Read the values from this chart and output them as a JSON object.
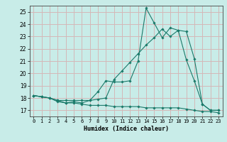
{
  "xlabel": "Humidex (Indice chaleur)",
  "ylabel": "",
  "bg_color": "#c8ece8",
  "grid_color": "#d4b8b8",
  "line_color": "#1a7a6a",
  "xlim": [
    -0.5,
    23.5
  ],
  "ylim": [
    16.5,
    25.5
  ],
  "yticks": [
    17,
    18,
    19,
    20,
    21,
    22,
    23,
    24,
    25
  ],
  "xticks": [
    0,
    1,
    2,
    3,
    4,
    5,
    6,
    7,
    8,
    9,
    10,
    11,
    12,
    13,
    14,
    15,
    16,
    17,
    18,
    19,
    20,
    21,
    22,
    23
  ],
  "line1_x": [
    0,
    1,
    2,
    3,
    4,
    5,
    6,
    7,
    8,
    9,
    10,
    11,
    12,
    13,
    14,
    15,
    16,
    17,
    18,
    19,
    20,
    21,
    22,
    23
  ],
  "line1_y": [
    18.2,
    18.1,
    18.0,
    17.7,
    17.6,
    17.6,
    17.5,
    17.4,
    17.4,
    17.4,
    17.3,
    17.3,
    17.3,
    17.3,
    17.2,
    17.2,
    17.2,
    17.2,
    17.2,
    17.1,
    17.0,
    16.9,
    16.9,
    16.8
  ],
  "line2_x": [
    0,
    1,
    2,
    3,
    4,
    5,
    6,
    7,
    8,
    9,
    10,
    11,
    12,
    13,
    14,
    15,
    16,
    17,
    18,
    19,
    20,
    21,
    22,
    23
  ],
  "line2_y": [
    18.2,
    18.1,
    18.0,
    17.8,
    17.6,
    17.7,
    17.6,
    17.8,
    18.5,
    19.4,
    19.3,
    19.3,
    19.4,
    21.0,
    25.3,
    24.1,
    22.9,
    23.7,
    23.5,
    21.1,
    19.4,
    17.5,
    17.0,
    17.0
  ],
  "line3_x": [
    0,
    1,
    2,
    3,
    4,
    5,
    6,
    7,
    8,
    9,
    10,
    11,
    12,
    13,
    14,
    15,
    16,
    17,
    18,
    19,
    20,
    21,
    22,
    23
  ],
  "line3_y": [
    18.2,
    18.1,
    18.0,
    17.8,
    17.8,
    17.8,
    17.8,
    17.8,
    17.9,
    18.0,
    19.5,
    20.2,
    20.9,
    21.6,
    22.3,
    22.9,
    23.6,
    23.0,
    23.5,
    23.4,
    21.2,
    17.5,
    17.0,
    17.0
  ],
  "figsize": [
    3.2,
    2.0
  ],
  "dpi": 100
}
